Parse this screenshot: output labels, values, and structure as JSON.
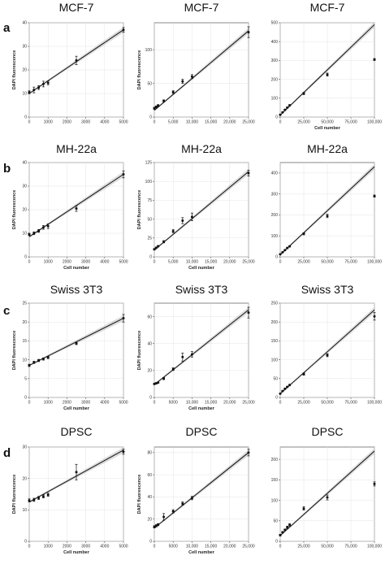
{
  "row_labels": [
    "a",
    "b",
    "c",
    "d"
  ],
  "chart_data": [
    {
      "type": "scatter",
      "row": 0,
      "col": 0,
      "title": "MCF-7",
      "xlabel": "",
      "ylabel": "DAPI fluorescence",
      "xlim": [
        0,
        5000
      ],
      "ylim": [
        0,
        40
      ],
      "xticks": [
        0,
        1000,
        2000,
        3000,
        4000,
        5000
      ],
      "xtick_labels": [
        "0",
        "1000",
        "2000",
        "3000",
        "4000",
        "5000"
      ],
      "yticks": [
        0,
        10,
        20,
        30,
        40
      ],
      "ytick_labels": [
        "0",
        "10",
        "20",
        "30",
        "40"
      ],
      "points": [
        {
          "x": 0,
          "y": 10.5,
          "err": 0.6
        },
        {
          "x": 250,
          "y": 11.5,
          "err": 1.2
        },
        {
          "x": 500,
          "y": 12.5,
          "err": 0.8
        },
        {
          "x": 750,
          "y": 14,
          "err": 1.2
        },
        {
          "x": 1000,
          "y": 14.5,
          "err": 0.8
        },
        {
          "x": 2500,
          "y": 24,
          "err": 1.8
        },
        {
          "x": 5000,
          "y": 37,
          "err": 1.0
        }
      ],
      "fit": [
        [
          0,
          10
        ],
        [
          5000,
          37
        ]
      ]
    },
    {
      "type": "scatter",
      "row": 0,
      "col": 1,
      "title": "MCF-7",
      "xlabel": "",
      "ylabel": "DAPI fluorescence",
      "xlim": [
        0,
        25000
      ],
      "ylim": [
        0,
        140
      ],
      "xticks": [
        0,
        5000,
        10000,
        15000,
        20000,
        25000
      ],
      "xtick_labels": [
        "0",
        "5,000",
        "10,000",
        "15,000",
        "20,000",
        "25,000"
      ],
      "yticks": [
        0,
        50,
        100
      ],
      "ytick_labels": [
        "0",
        "50",
        "100"
      ],
      "points": [
        {
          "x": 0,
          "y": 13,
          "err": 1.5
        },
        {
          "x": 500,
          "y": 15,
          "err": 1.5
        },
        {
          "x": 1000,
          "y": 17,
          "err": 1.5
        },
        {
          "x": 2500,
          "y": 24,
          "err": 1.5
        },
        {
          "x": 5000,
          "y": 37,
          "err": 2
        },
        {
          "x": 7500,
          "y": 53,
          "err": 3
        },
        {
          "x": 10000,
          "y": 60,
          "err": 3
        },
        {
          "x": 25000,
          "y": 126,
          "err": 8
        }
      ],
      "fit": [
        [
          0,
          10
        ],
        [
          25000,
          128
        ]
      ]
    },
    {
      "type": "scatter",
      "row": 0,
      "col": 2,
      "title": "MCF-7",
      "xlabel": "Cell number",
      "ylabel": "",
      "xlim": [
        0,
        100000
      ],
      "ylim": [
        0,
        500
      ],
      "xticks": [
        0,
        25000,
        50000,
        75000,
        100000
      ],
      "xtick_labels": [
        "0",
        "25,000",
        "50,000",
        "75,000",
        "100,000"
      ],
      "yticks": [
        0,
        100,
        200,
        300,
        400,
        500
      ],
      "ytick_labels": [
        "0",
        "100",
        "200",
        "300",
        "400",
        "500"
      ],
      "points": [
        {
          "x": 0,
          "y": 12,
          "err": 2
        },
        {
          "x": 2500,
          "y": 25,
          "err": 2
        },
        {
          "x": 5000,
          "y": 38,
          "err": 3
        },
        {
          "x": 7500,
          "y": 50,
          "err": 3
        },
        {
          "x": 10000,
          "y": 62,
          "err": 4
        },
        {
          "x": 25000,
          "y": 125,
          "err": 6
        },
        {
          "x": 50000,
          "y": 225,
          "err": 8
        },
        {
          "x": 100000,
          "y": 305,
          "err": 5
        }
      ],
      "fit": [
        [
          0,
          10
        ],
        [
          100000,
          490
        ]
      ]
    },
    {
      "type": "scatter",
      "row": 1,
      "col": 0,
      "title": "MH-22a",
      "xlabel": "Cell number",
      "ylabel": "DAPI fluorescence",
      "xlim": [
        0,
        5000
      ],
      "ylim": [
        0,
        40
      ],
      "xticks": [
        0,
        1000,
        2000,
        3000,
        4000,
        5000
      ],
      "xtick_labels": [
        "0",
        "1000",
        "2000",
        "3000",
        "4000",
        "5000"
      ],
      "yticks": [
        0,
        10,
        20,
        30,
        40
      ],
      "ytick_labels": [
        "0",
        "10",
        "20",
        "30",
        "40"
      ],
      "points": [
        {
          "x": 0,
          "y": 9.5,
          "err": 0.5
        },
        {
          "x": 250,
          "y": 10,
          "err": 0.6
        },
        {
          "x": 500,
          "y": 11,
          "err": 0.6
        },
        {
          "x": 750,
          "y": 12.5,
          "err": 0.8
        },
        {
          "x": 1000,
          "y": 13,
          "err": 1.0
        },
        {
          "x": 2500,
          "y": 20.5,
          "err": 1.2
        },
        {
          "x": 5000,
          "y": 35,
          "err": 1.5
        }
      ],
      "fit": [
        [
          0,
          8.5
        ],
        [
          5000,
          35
        ]
      ]
    },
    {
      "type": "scatter",
      "row": 1,
      "col": 1,
      "title": "MH-22a",
      "xlabel": "Cell number",
      "ylabel": "DAPI fluorescence",
      "xlim": [
        0,
        25000
      ],
      "ylim": [
        0,
        125
      ],
      "xticks": [
        0,
        5000,
        10000,
        15000,
        20000,
        25000
      ],
      "xtick_labels": [
        "0",
        "5,000",
        "10,000",
        "15,000",
        "20,000",
        "25,000"
      ],
      "yticks": [
        0,
        25,
        50,
        75,
        100,
        125
      ],
      "ytick_labels": [
        "0",
        "25",
        "50",
        "75",
        "100",
        "125"
      ],
      "points": [
        {
          "x": 0,
          "y": 10,
          "err": 1
        },
        {
          "x": 500,
          "y": 12,
          "err": 1
        },
        {
          "x": 1000,
          "y": 14,
          "err": 1
        },
        {
          "x": 2500,
          "y": 20,
          "err": 1.5
        },
        {
          "x": 5000,
          "y": 34,
          "err": 2
        },
        {
          "x": 7500,
          "y": 48,
          "err": 4
        },
        {
          "x": 10000,
          "y": 53,
          "err": 5
        },
        {
          "x": 25000,
          "y": 111,
          "err": 4
        }
      ],
      "fit": [
        [
          0,
          9
        ],
        [
          25000,
          113
        ]
      ]
    },
    {
      "type": "scatter",
      "row": 1,
      "col": 2,
      "title": "MH-22a",
      "xlabel": "",
      "ylabel": "",
      "xlim": [
        0,
        100000
      ],
      "ylim": [
        0,
        450
      ],
      "xticks": [
        0,
        25000,
        50000,
        75000,
        100000
      ],
      "xtick_labels": [
        "0",
        "25,000",
        "50,000",
        "75,000",
        "100,000"
      ],
      "yticks": [
        0,
        100,
        200,
        300,
        400
      ],
      "ytick_labels": [
        "0",
        "100",
        "200",
        "300",
        "400"
      ],
      "points": [
        {
          "x": 0,
          "y": 12,
          "err": 2
        },
        {
          "x": 2500,
          "y": 22,
          "err": 2
        },
        {
          "x": 5000,
          "y": 32,
          "err": 2
        },
        {
          "x": 7500,
          "y": 42,
          "err": 3
        },
        {
          "x": 10000,
          "y": 50,
          "err": 3
        },
        {
          "x": 25000,
          "y": 110,
          "err": 5
        },
        {
          "x": 50000,
          "y": 195,
          "err": 8
        },
        {
          "x": 100000,
          "y": 290,
          "err": 5
        }
      ],
      "fit": [
        [
          0,
          10
        ],
        [
          100000,
          430
        ]
      ]
    },
    {
      "type": "scatter",
      "row": 2,
      "col": 0,
      "title": "Swiss 3T3",
      "xlabel": "Cell number",
      "ylabel": "DAPI fluorescence",
      "xlim": [
        0,
        5000
      ],
      "ylim": [
        0,
        25
      ],
      "xticks": [
        0,
        1000,
        2000,
        3000,
        4000,
        5000
      ],
      "xtick_labels": [
        "0",
        "1000",
        "2000",
        "3000",
        "4000",
        "5000"
      ],
      "yticks": [
        0,
        5,
        10,
        15,
        20,
        25
      ],
      "ytick_labels": [
        "0",
        "5",
        "10",
        "15",
        "20",
        "25"
      ],
      "points": [
        {
          "x": 0,
          "y": 8.5,
          "err": 0.3
        },
        {
          "x": 250,
          "y": 9.3,
          "err": 0.3
        },
        {
          "x": 500,
          "y": 9.8,
          "err": 0.3
        },
        {
          "x": 750,
          "y": 10.2,
          "err": 0.3
        },
        {
          "x": 1000,
          "y": 10.6,
          "err": 0.3
        },
        {
          "x": 2500,
          "y": 14.3,
          "err": 0.3
        },
        {
          "x": 5000,
          "y": 21,
          "err": 1.0
        }
      ],
      "fit": [
        [
          0,
          8.5
        ],
        [
          5000,
          21
        ]
      ]
    },
    {
      "type": "scatter",
      "row": 2,
      "col": 1,
      "title": "Swiss 3T3",
      "xlabel": "Cell number",
      "ylabel": "DAPI fluorescence",
      "xlim": [
        0,
        25000
      ],
      "ylim": [
        0,
        70
      ],
      "xticks": [
        0,
        5000,
        10000,
        15000,
        20000,
        25000
      ],
      "xtick_labels": [
        "0",
        "5000",
        "10,000",
        "15,000",
        "20,000",
        "25,000"
      ],
      "yticks": [
        0,
        20,
        40,
        60
      ],
      "ytick_labels": [
        "0",
        "20",
        "40",
        "60"
      ],
      "points": [
        {
          "x": 0,
          "y": 10,
          "err": 0.5
        },
        {
          "x": 500,
          "y": 10.5,
          "err": 0.5
        },
        {
          "x": 1000,
          "y": 11,
          "err": 0.5
        },
        {
          "x": 2500,
          "y": 14,
          "err": 0.8
        },
        {
          "x": 5000,
          "y": 21,
          "err": 1
        },
        {
          "x": 7500,
          "y": 30,
          "err": 3
        },
        {
          "x": 10000,
          "y": 32,
          "err": 2
        },
        {
          "x": 25000,
          "y": 63,
          "err": 4
        }
      ],
      "fit": [
        [
          0,
          9.5
        ],
        [
          25000,
          65
        ]
      ]
    },
    {
      "type": "scatter",
      "row": 2,
      "col": 2,
      "title": "Swiss 3T3",
      "xlabel": "",
      "ylabel": "",
      "xlim": [
        0,
        100000
      ],
      "ylim": [
        0,
        250
      ],
      "xticks": [
        0,
        25000,
        50000,
        75000,
        100000
      ],
      "xtick_labels": [
        "0",
        "25,000",
        "50,000",
        "75,000",
        "100,000"
      ],
      "yticks": [
        0,
        50,
        100,
        150,
        200,
        250
      ],
      "ytick_labels": [
        "0",
        "50",
        "100",
        "150",
        "200",
        "250"
      ],
      "points": [
        {
          "x": 0,
          "y": 10,
          "err": 1
        },
        {
          "x": 2500,
          "y": 17,
          "err": 1
        },
        {
          "x": 5000,
          "y": 23,
          "err": 1.5
        },
        {
          "x": 7500,
          "y": 28,
          "err": 1.5
        },
        {
          "x": 10000,
          "y": 33,
          "err": 2
        },
        {
          "x": 25000,
          "y": 62,
          "err": 3
        },
        {
          "x": 50000,
          "y": 112,
          "err": 4
        },
        {
          "x": 100000,
          "y": 215,
          "err": 10
        }
      ],
      "fit": [
        [
          0,
          10
        ],
        [
          100000,
          232
        ]
      ]
    },
    {
      "type": "scatter",
      "row": 3,
      "col": 0,
      "title": "DPSC",
      "xlabel": "Cell number",
      "ylabel": "DAPI fluorescence",
      "xlim": [
        0,
        5000
      ],
      "ylim": [
        0,
        30
      ],
      "xticks": [
        0,
        1000,
        2000,
        3000,
        4000,
        5000
      ],
      "xtick_labels": [
        "0",
        "1000",
        "2000",
        "3000",
        "4000",
        "5000"
      ],
      "yticks": [
        0,
        10,
        20,
        30
      ],
      "ytick_labels": [
        "0",
        "10",
        "20",
        "30"
      ],
      "points": [
        {
          "x": 0,
          "y": 13,
          "err": 0.5
        },
        {
          "x": 250,
          "y": 13.2,
          "err": 0.5
        },
        {
          "x": 500,
          "y": 13.8,
          "err": 0.5
        },
        {
          "x": 750,
          "y": 14.3,
          "err": 0.5
        },
        {
          "x": 1000,
          "y": 14.8,
          "err": 0.5
        },
        {
          "x": 2500,
          "y": 22,
          "err": 2.5
        },
        {
          "x": 5000,
          "y": 28.5,
          "err": 0.8
        }
      ],
      "fit": [
        [
          0,
          12.5
        ],
        [
          5000,
          29
        ]
      ]
    },
    {
      "type": "scatter",
      "row": 3,
      "col": 1,
      "title": "DPSC",
      "xlabel": "Cell number",
      "ylabel": "DAPI fluorescence",
      "xlim": [
        0,
        25000
      ],
      "ylim": [
        0,
        85
      ],
      "xticks": [
        0,
        5000,
        10000,
        15000,
        20000,
        25000
      ],
      "xtick_labels": [
        "0",
        "5000",
        "10,000",
        "15,000",
        "20,000",
        "25,000"
      ],
      "yticks": [
        0,
        20,
        40,
        60,
        80
      ],
      "ytick_labels": [
        "0",
        "20",
        "40",
        "60",
        "80"
      ],
      "points": [
        {
          "x": 0,
          "y": 13,
          "err": 1
        },
        {
          "x": 500,
          "y": 14,
          "err": 1
        },
        {
          "x": 1000,
          "y": 15,
          "err": 1
        },
        {
          "x": 2500,
          "y": 22,
          "err": 3
        },
        {
          "x": 5000,
          "y": 27,
          "err": 1.5
        },
        {
          "x": 7500,
          "y": 34,
          "err": 1.5
        },
        {
          "x": 10000,
          "y": 39,
          "err": 1.5
        },
        {
          "x": 25000,
          "y": 80,
          "err": 3
        }
      ],
      "fit": [
        [
          0,
          12
        ],
        [
          25000,
          80
        ]
      ]
    },
    {
      "type": "scatter",
      "row": 3,
      "col": 2,
      "title": "DPSC",
      "xlabel": "",
      "ylabel": "",
      "xlim": [
        0,
        100000
      ],
      "ylim": [
        0,
        230
      ],
      "xticks": [
        0,
        25000,
        50000,
        75000,
        100000
      ],
      "xtick_labels": [
        "0",
        "25,000",
        "50,000",
        "75,000",
        "100,000"
      ],
      "yticks": [
        0,
        50,
        100,
        150,
        200
      ],
      "ytick_labels": [
        "0",
        "50",
        "100",
        "150",
        "200"
      ],
      "points": [
        {
          "x": 0,
          "y": 15,
          "err": 2
        },
        {
          "x": 2500,
          "y": 22,
          "err": 2
        },
        {
          "x": 5000,
          "y": 28,
          "err": 2
        },
        {
          "x": 7500,
          "y": 34,
          "err": 3
        },
        {
          "x": 10000,
          "y": 40,
          "err": 3
        },
        {
          "x": 25000,
          "y": 80,
          "err": 4
        },
        {
          "x": 50000,
          "y": 107,
          "err": 6
        },
        {
          "x": 100000,
          "y": 140,
          "err": 5
        }
      ],
      "fit": [
        [
          0,
          14
        ],
        [
          100000,
          220
        ]
      ]
    }
  ]
}
